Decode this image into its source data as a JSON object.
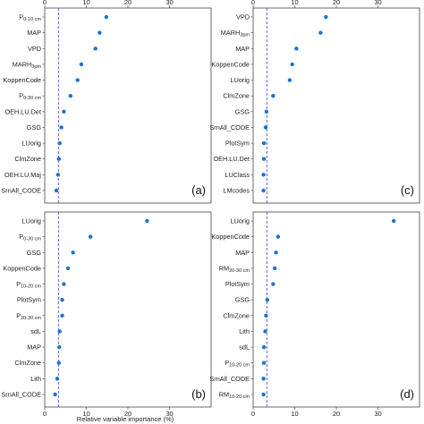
{
  "chart_data": [
    {
      "type": "scatter",
      "panel": "(a)",
      "xlim": [
        0,
        40
      ],
      "xticks": [
        0,
        10,
        20,
        30
      ],
      "threshold": 3.3,
      "categories": [
        "P0-10 cm",
        "MAP",
        "VPD",
        "MARH3pm",
        "KoppenCode",
        "P0-30 cm",
        "OEH.LU.Det",
        "GSG",
        "LUorig",
        "ClmZone",
        "OEH.LU.Maj",
        "SrnAll_CODE"
      ],
      "values": [
        14.8,
        13.2,
        12.2,
        8.8,
        7.9,
        6.2,
        4.6,
        4.0,
        3.6,
        3.4,
        3.2,
        2.8
      ]
    },
    {
      "type": "scatter",
      "panel": "(c)",
      "xlim": [
        0,
        40
      ],
      "xticks": [
        0,
        10,
        20,
        30
      ],
      "threshold": 3.3,
      "categories": [
        "VPD",
        "MARH3pm",
        "MAP",
        "KoppenCode",
        "LUorig",
        "ClmZone",
        "GSG",
        "SrnAll_CODE",
        "PlotSym",
        "OEH.LU.Det",
        "LUClass",
        "LMcodes"
      ],
      "values": [
        17.5,
        16.2,
        10.4,
        9.4,
        8.8,
        4.8,
        3.2,
        3.0,
        2.6,
        2.6,
        2.5,
        2.5
      ]
    },
    {
      "type": "scatter",
      "panel": "(b)",
      "xlim": [
        0,
        40
      ],
      "xticks": [
        0,
        10,
        20,
        30
      ],
      "threshold": 3.3,
      "categories": [
        "LUorig",
        "P0-30 cm",
        "GSG",
        "KoppenCode",
        "P10-20 cm",
        "PlotSym",
        "P20-30 cm",
        "sdL",
        "MAP",
        "ClmZone",
        "Lith",
        "SrnAll_CODE"
      ],
      "values": [
        24.6,
        11.0,
        6.8,
        5.6,
        4.6,
        4.2,
        4.2,
        3.6,
        3.5,
        3.4,
        3.0,
        2.5
      ]
    },
    {
      "type": "scatter",
      "panel": "(d)",
      "xlim": [
        0,
        40
      ],
      "xticks": [
        0,
        10,
        20,
        30
      ],
      "threshold": 3.3,
      "categories": [
        "LUorig",
        "KoppenCode",
        "MAP",
        "RM20-30 cm",
        "PlotSym",
        "GSG",
        "ClmZone",
        "Lith",
        "sdL",
        "P10-20 cm",
        "SrnAll_CODE",
        "RM10-20 cm"
      ],
      "values": [
        33.8,
        6.0,
        5.5,
        5.2,
        4.8,
        3.4,
        3.1,
        2.9,
        2.6,
        2.6,
        2.5,
        2.5
      ]
    }
  ],
  "xlabel": "Relative variable importance (%)",
  "colors": {
    "point": "#1a73d0",
    "threshold": "#5050e0",
    "frame": "#444444"
  }
}
